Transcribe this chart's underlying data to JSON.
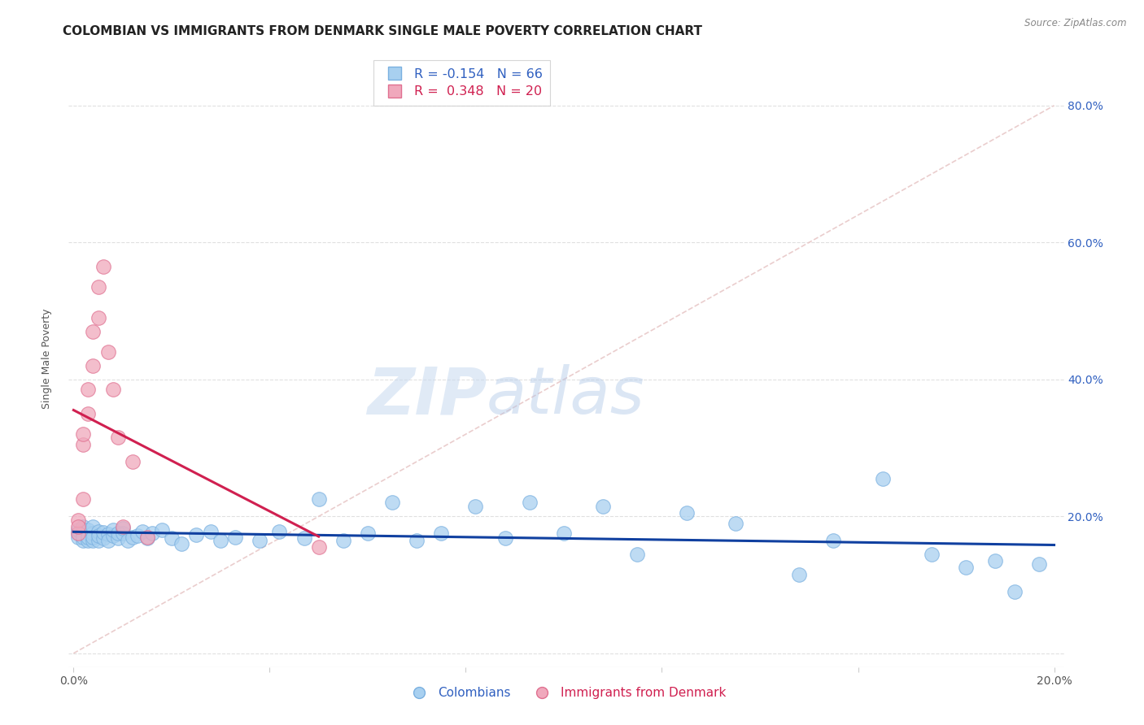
{
  "title": "COLOMBIAN VS IMMIGRANTS FROM DENMARK SINGLE MALE POVERTY CORRELATION CHART",
  "source": "Source: ZipAtlas.com",
  "ylabel": "Single Male Poverty",
  "xlim": [
    0.0,
    0.2
  ],
  "ylim": [
    0.0,
    0.88
  ],
  "colombians_x": [
    0.001,
    0.001,
    0.001,
    0.002,
    0.002,
    0.002,
    0.002,
    0.003,
    0.003,
    0.003,
    0.003,
    0.004,
    0.004,
    0.004,
    0.004,
    0.005,
    0.005,
    0.005,
    0.006,
    0.006,
    0.007,
    0.007,
    0.008,
    0.008,
    0.009,
    0.009,
    0.01,
    0.01,
    0.011,
    0.012,
    0.013,
    0.014,
    0.015,
    0.016,
    0.018,
    0.02,
    0.022,
    0.025,
    0.028,
    0.03,
    0.033,
    0.038,
    0.042,
    0.047,
    0.05,
    0.055,
    0.06,
    0.065,
    0.07,
    0.075,
    0.082,
    0.088,
    0.093,
    0.1,
    0.108,
    0.115,
    0.125,
    0.135,
    0.148,
    0.155,
    0.165,
    0.175,
    0.182,
    0.188,
    0.192,
    0.197
  ],
  "colombians_y": [
    0.175,
    0.17,
    0.18,
    0.165,
    0.175,
    0.185,
    0.17,
    0.165,
    0.175,
    0.18,
    0.17,
    0.165,
    0.175,
    0.185,
    0.17,
    0.165,
    0.178,
    0.172,
    0.168,
    0.177,
    0.174,
    0.165,
    0.172,
    0.18,
    0.168,
    0.176,
    0.175,
    0.182,
    0.165,
    0.17,
    0.172,
    0.178,
    0.168,
    0.175,
    0.18,
    0.168,
    0.16,
    0.173,
    0.178,
    0.165,
    0.17,
    0.165,
    0.178,
    0.168,
    0.225,
    0.165,
    0.175,
    0.22,
    0.165,
    0.175,
    0.215,
    0.168,
    0.22,
    0.175,
    0.215,
    0.145,
    0.205,
    0.19,
    0.115,
    0.165,
    0.255,
    0.145,
    0.125,
    0.135,
    0.09,
    0.13
  ],
  "denmark_x": [
    0.001,
    0.001,
    0.001,
    0.002,
    0.002,
    0.002,
    0.003,
    0.003,
    0.004,
    0.004,
    0.005,
    0.005,
    0.006,
    0.007,
    0.008,
    0.009,
    0.01,
    0.012,
    0.015,
    0.05
  ],
  "denmark_y": [
    0.175,
    0.195,
    0.185,
    0.225,
    0.305,
    0.32,
    0.35,
    0.385,
    0.47,
    0.42,
    0.535,
    0.49,
    0.565,
    0.44,
    0.385,
    0.315,
    0.185,
    0.28,
    0.17,
    0.155
  ],
  "colombian_color": "#a8d0f0",
  "denmark_color": "#f0a8bc",
  "colombian_edge_color": "#7ab0e0",
  "denmark_edge_color": "#e07090",
  "trendline_colombian_color": "#1040a0",
  "trendline_denmark_color": "#d02050",
  "diagonal_color": "#e8c8c8",
  "background_color": "#ffffff",
  "grid_color": "#e0e0e0",
  "R_colombian": -0.154,
  "N_colombian": 66,
  "R_denmark": 0.348,
  "N_denmark": 20,
  "watermark_zip": "ZIP",
  "watermark_atlas": "atlas",
  "title_fontsize": 11,
  "axis_label_fontsize": 9,
  "tick_fontsize": 10
}
